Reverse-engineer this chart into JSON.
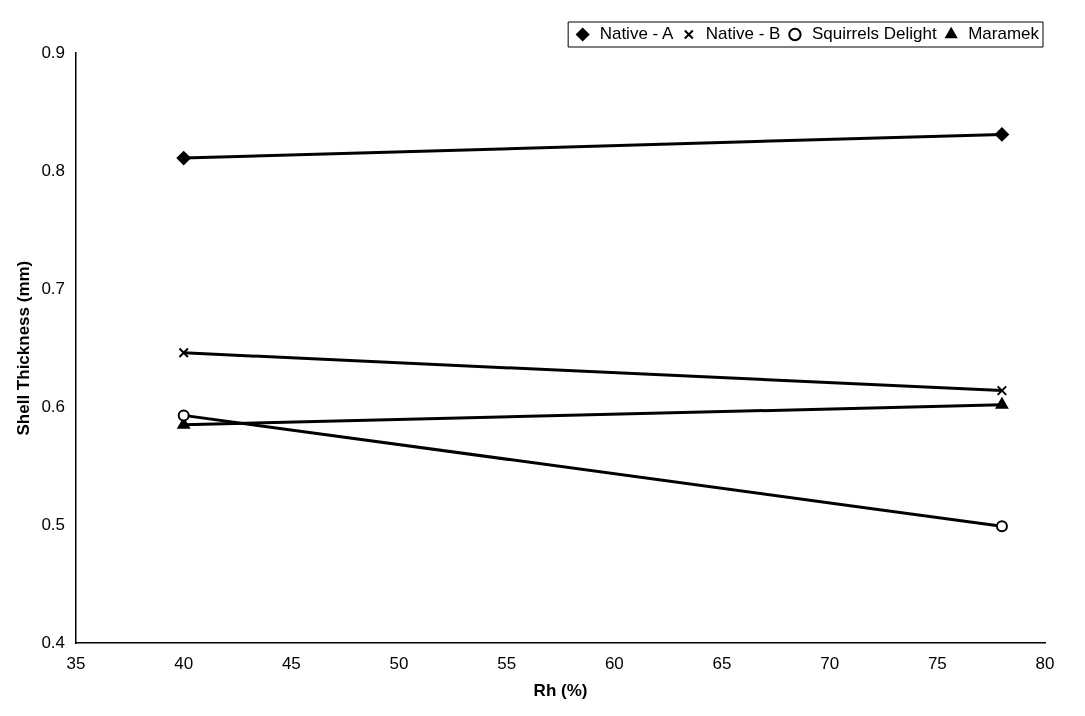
{
  "chart_data": {
    "type": "line",
    "xlabel": "Rh (%)",
    "ylabel": "Shell Thickness (mm)",
    "x": [
      40,
      78
    ],
    "series": [
      {
        "name": "Native - A",
        "color": "#000000",
        "marker": "diamond",
        "values": [
          0.811,
          0.831
        ]
      },
      {
        "name": "Native - B",
        "color": "#000000",
        "marker": "cross",
        "values": [
          0.646,
          0.614
        ]
      },
      {
        "name": "Squirrels Delight",
        "color": "#000000",
        "marker": "circle",
        "values": [
          0.593,
          0.499
        ]
      },
      {
        "name": "Maramek",
        "color": "#000000",
        "marker": "triangle",
        "values": [
          0.585,
          0.602
        ]
      }
    ],
    "xlim": [
      35,
      80
    ],
    "xticks": [
      35,
      40,
      45,
      50,
      55,
      60,
      65,
      70,
      75,
      80
    ],
    "ylim": [
      0.4,
      0.9
    ],
    "yticks": [
      0.4,
      0.5,
      0.6,
      0.7,
      0.8,
      0.9
    ],
    "grid": false,
    "legend": "top right",
    "line_style": "solid"
  }
}
